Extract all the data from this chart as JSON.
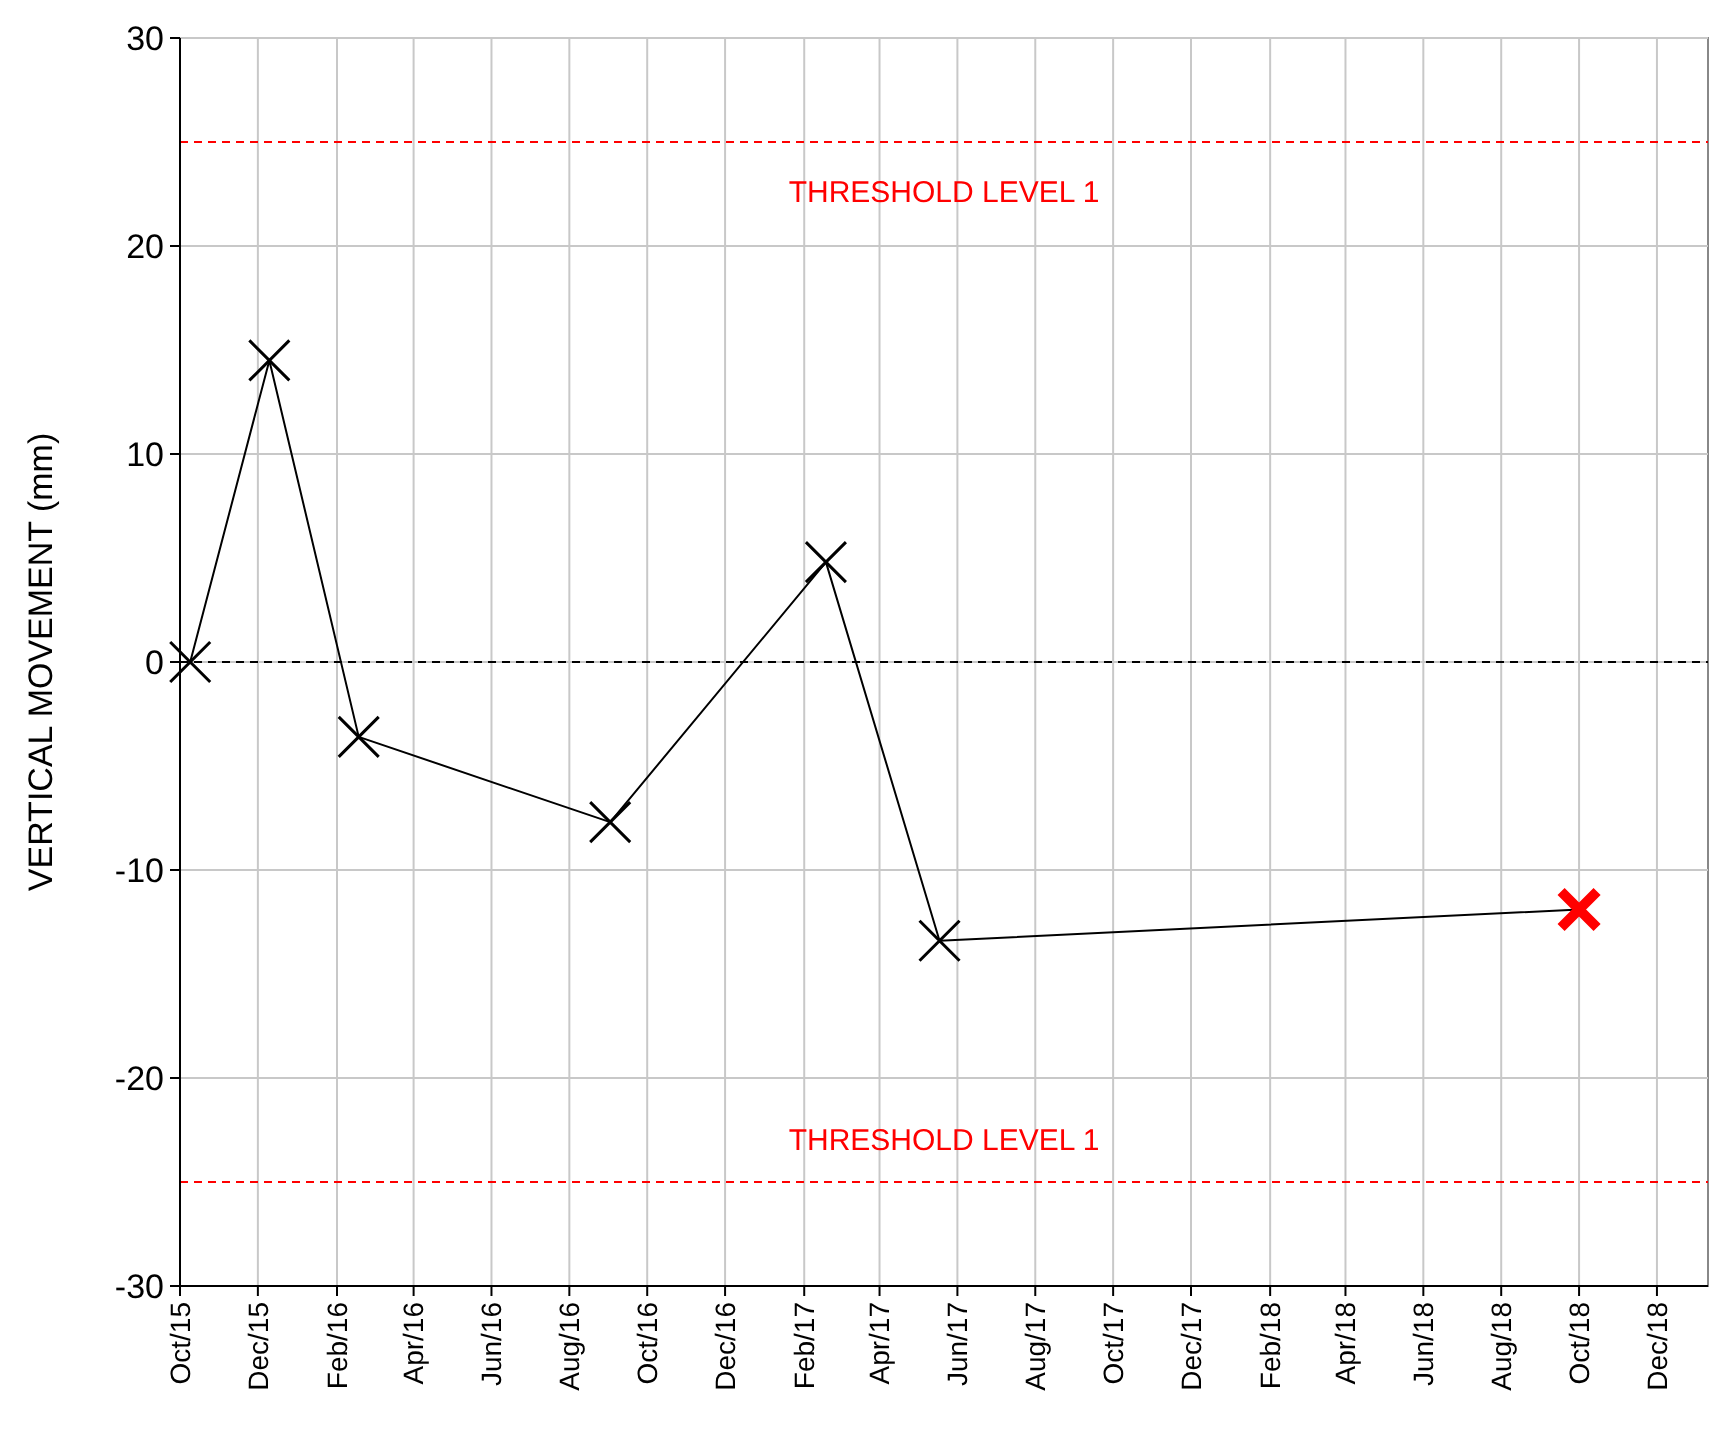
{
  "chart_data": {
    "type": "line",
    "ylabel": "VERTICAL MOVEMENT (mm)",
    "xlim": [
      "2015-10-01",
      "2019-01-10"
    ],
    "ylim": [
      -30,
      30
    ],
    "yticks": [
      -30,
      -20,
      -10,
      0,
      10,
      20,
      30
    ],
    "xticks": [
      {
        "value": "2015-10-01",
        "label": "Oct/15"
      },
      {
        "value": "2015-12-01",
        "label": "Dec/15"
      },
      {
        "value": "2016-02-01",
        "label": "Feb/16"
      },
      {
        "value": "2016-04-01",
        "label": "Apr/16"
      },
      {
        "value": "2016-06-01",
        "label": "Jun/16"
      },
      {
        "value": "2016-08-01",
        "label": "Aug/16"
      },
      {
        "value": "2016-10-01",
        "label": "Oct/16"
      },
      {
        "value": "2016-12-01",
        "label": "Dec/16"
      },
      {
        "value": "2017-02-01",
        "label": "Feb/17"
      },
      {
        "value": "2017-04-01",
        "label": "Apr/17"
      },
      {
        "value": "2017-06-01",
        "label": "Jun/17"
      },
      {
        "value": "2017-08-01",
        "label": "Aug/17"
      },
      {
        "value": "2017-10-01",
        "label": "Oct/17"
      },
      {
        "value": "2017-12-01",
        "label": "Dec/17"
      },
      {
        "value": "2018-02-01",
        "label": "Feb/18"
      },
      {
        "value": "2018-04-01",
        "label": "Apr/18"
      },
      {
        "value": "2018-06-01",
        "label": "Jun/18"
      },
      {
        "value": "2018-08-01",
        "label": "Aug/18"
      },
      {
        "value": "2018-10-01",
        "label": "Oct/18"
      },
      {
        "value": "2018-12-01",
        "label": "Dec/18"
      }
    ],
    "grid": true,
    "marker": "cross",
    "series": [
      {
        "color": "#000000",
        "colors": [
          "#000000",
          "#000000",
          "#000000",
          "#000000",
          "#000000",
          "#000000",
          "#ff0000"
        ],
        "x": [
          "2015-10-09",
          "2015-12-10",
          "2016-02-18",
          "2016-09-02",
          "2017-02-18",
          "2017-05-18",
          "2018-10-01"
        ],
        "values": [
          0,
          14.5,
          -3.6,
          -7.7,
          4.8,
          -13.4,
          -11.9
        ]
      }
    ],
    "ref_lines": [
      {
        "axis": "y",
        "value": 25,
        "label": "THRESHOLD LEVEL 1",
        "color": "#ff0000",
        "line_style": "dashed"
      },
      {
        "axis": "y",
        "value": -25,
        "label": "THRESHOLD LEVEL 1",
        "color": "#ff0000",
        "line_style": "dashed"
      },
      {
        "axis": "y",
        "value": 0,
        "color": "#000000",
        "line_style": "dashed"
      }
    ]
  }
}
